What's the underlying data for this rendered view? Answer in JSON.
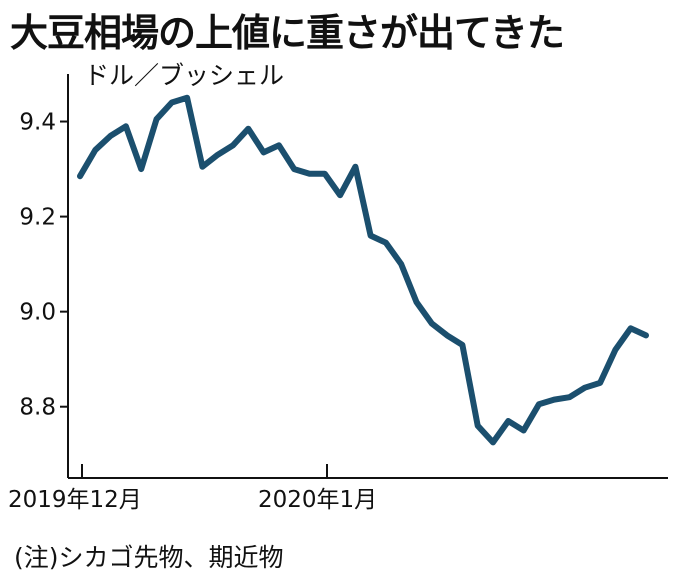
{
  "chart_data": {
    "type": "line",
    "title": "大豆相場の上値に重さが出てきた",
    "unit_label": "ドル／ブッシェル",
    "note": "(注)シカゴ先物、期近物",
    "x_tick_labels": [
      "2019年12月",
      "2020年1月"
    ],
    "y_ticks": [
      8.8,
      9.0,
      9.2,
      9.4
    ],
    "y_tick_labels": [
      "8.8",
      "9.0",
      "9.2",
      "9.4"
    ],
    "ylim": [
      8.65,
      9.5
    ],
    "grid": false,
    "line_color": "#1b4f6e",
    "series": [
      {
        "values": [
          9.285,
          9.34,
          9.37,
          9.39,
          9.3,
          9.405,
          9.44,
          9.45,
          9.305,
          9.33,
          9.35,
          9.385,
          9.335,
          9.35,
          9.3,
          9.29,
          9.29,
          9.245,
          9.305,
          9.16,
          9.145,
          9.1,
          9.02,
          8.975,
          8.95,
          8.93,
          8.76,
          8.725,
          8.77,
          8.75,
          8.805,
          8.815,
          8.82,
          8.84,
          8.85,
          8.92,
          8.965,
          8.95
        ]
      }
    ]
  }
}
